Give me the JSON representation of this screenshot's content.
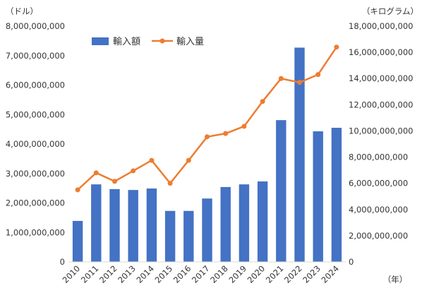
{
  "chart_data": {
    "type": "bar-line",
    "categories": [
      "2010",
      "2011",
      "2012",
      "2013",
      "2014",
      "2015",
      "2016",
      "2017",
      "2018",
      "2019",
      "2020",
      "2021",
      "2022",
      "2023",
      "2024"
    ],
    "series": [
      {
        "name": "輸入額",
        "type": "bar",
        "axis": "left",
        "color": "#4472C4",
        "values": [
          1390000000,
          2630000000,
          2470000000,
          2440000000,
          2490000000,
          1730000000,
          1730000000,
          2150000000,
          2540000000,
          2630000000,
          2730000000,
          4810000000,
          7270000000,
          4430000000,
          4550000000
        ]
      },
      {
        "name": "輸入量",
        "type": "line",
        "axis": "right",
        "color": "#ED7D31",
        "values": [
          5500000000,
          6800000000,
          6150000000,
          6950000000,
          7750000000,
          6000000000,
          7750000000,
          9550000000,
          9800000000,
          10350000000,
          12250000000,
          14000000000,
          13700000000,
          14300000000,
          16400000000
        ]
      }
    ],
    "left_axis": {
      "unit_label": "（ドル）",
      "ylim": [
        0,
        8000000000
      ],
      "ticks": [
        0,
        1000000000,
        2000000000,
        3000000000,
        4000000000,
        5000000000,
        6000000000,
        7000000000,
        8000000000
      ],
      "tick_labels": [
        "0",
        "1,000,000,000",
        "2,000,000,000",
        "3,000,000,000",
        "4,000,000,000",
        "5,000,000,000",
        "6,000,000,000",
        "7,000,000,000",
        "8,000,000,000"
      ]
    },
    "right_axis": {
      "unit_label": "（キログラム）",
      "ylim": [
        0,
        18000000000
      ],
      "ticks": [
        0,
        2000000000,
        4000000000,
        6000000000,
        8000000000,
        10000000000,
        12000000000,
        14000000000,
        16000000000,
        18000000000
      ],
      "tick_labels": [
        "0",
        "2,000,000,000",
        "4,000,000,000",
        "6,000,000,000",
        "8,000,000,000",
        "10,000,000,000",
        "12,000,000,000",
        "14,000,000,000",
        "16,000,000,000",
        "18,000,000,000"
      ]
    },
    "x_axis": {
      "unit_label": "（年）"
    },
    "grid": false,
    "legend_position": "top-left"
  }
}
